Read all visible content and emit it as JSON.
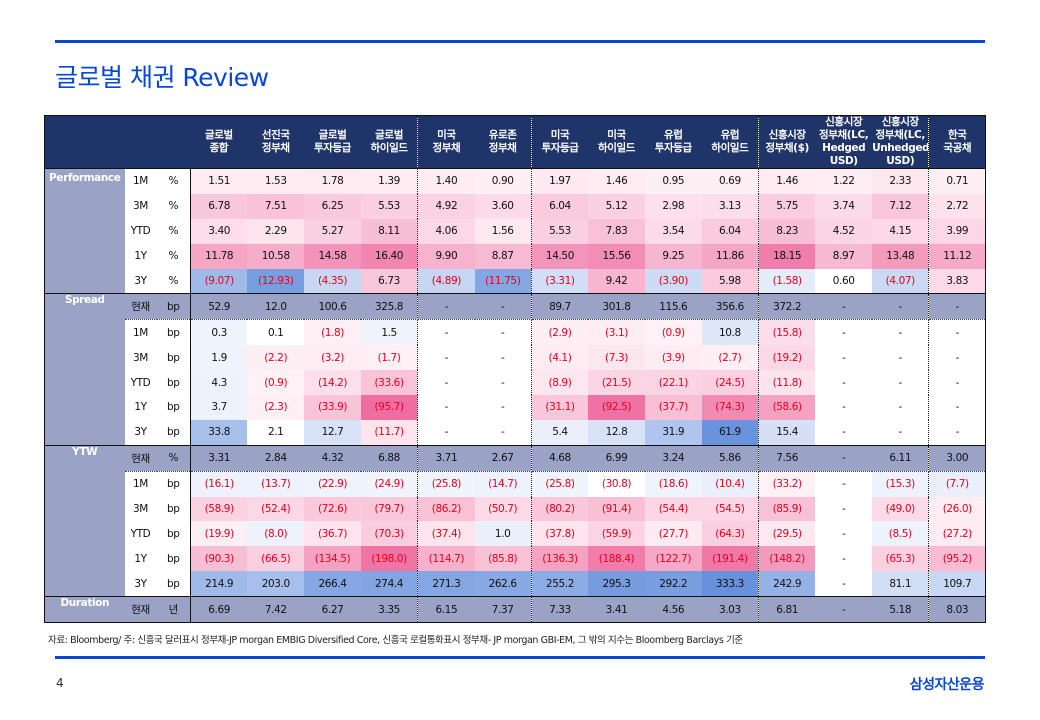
{
  "header": {
    "title": "글로벌 채권 Review"
  },
  "columns": [
    "글로벌\n종합",
    "선진국\n정부채",
    "글로벌\n투자등급",
    "글로벌\n하이일드",
    "미국\n정부채",
    "유로존\n정부채",
    "미국\n투자등급",
    "미국\n하이일드",
    "유럽\n투자등급",
    "유럽\n하이일드",
    "신흥시장\n정부채($)",
    "신흥시장\n정부채(LC,\nHedged\nUSD)",
    "신흥시장\n정부채(LC,\nUnhedged\nUSD)",
    "한국\n국공채"
  ],
  "colors": {
    "header_bg": "#1f3468",
    "group_bg": "#9aa3c6",
    "accent": "#0a47d6",
    "negative_text": "#e8001c",
    "pink_max": "#ec5f97",
    "blue_max": "#5b88d9"
  },
  "sections": [
    {
      "name": "Performance",
      "rows": [
        {
          "period": "1M",
          "unit": "%",
          "values": [
            "1.51",
            "1.53",
            "1.78",
            "1.39",
            "1.40",
            "0.90",
            "1.97",
            "1.46",
            "0.95",
            "0.69",
            "1.46",
            "1.22",
            "2.33",
            "0.71"
          ],
          "shade": [
            0.05,
            0.05,
            0.06,
            0.05,
            0.05,
            0.03,
            0.07,
            0.05,
            0.03,
            0.03,
            0.05,
            0.04,
            0.08,
            0.03
          ]
        },
        {
          "period": "3M",
          "unit": "%",
          "values": [
            "6.78",
            "7.51",
            "6.25",
            "5.53",
            "4.92",
            "3.60",
            "6.04",
            "5.12",
            "2.98",
            "3.13",
            "5.75",
            "3.74",
            "7.12",
            "2.72"
          ],
          "shade": [
            0.3,
            0.33,
            0.28,
            0.24,
            0.22,
            0.16,
            0.27,
            0.23,
            0.13,
            0.14,
            0.25,
            0.16,
            0.31,
            0.12
          ]
        },
        {
          "period": "YTD",
          "unit": "%",
          "values": [
            "3.40",
            "2.29",
            "5.27",
            "8.11",
            "4.06",
            "1.56",
            "5.53",
            "7.83",
            "3.54",
            "6.04",
            "8.23",
            "4.52",
            "4.15",
            "3.99"
          ],
          "shade": [
            0.15,
            0.1,
            0.23,
            0.36,
            0.18,
            0.07,
            0.24,
            0.34,
            0.16,
            0.27,
            0.36,
            0.2,
            0.18,
            0.18
          ]
        },
        {
          "period": "1Y",
          "unit": "%",
          "values": [
            "11.78",
            "10.58",
            "14.58",
            "16.40",
            "9.90",
            "8.87",
            "14.50",
            "15.56",
            "9.25",
            "11.86",
            "18.15",
            "8.97",
            "13.48",
            "11.12"
          ],
          "shade": [
            0.52,
            0.47,
            0.65,
            0.73,
            0.44,
            0.39,
            0.64,
            0.69,
            0.41,
            0.52,
            0.8,
            0.4,
            0.6,
            0.49
          ]
        },
        {
          "period": "3Y",
          "unit": "%",
          "values": [
            "(9.07)",
            "(12.93)",
            "(4.35)",
            "6.73",
            "(4.89)",
            "(11.75)",
            "(3.31)",
            "9.42",
            "(3.90)",
            "5.98",
            "(1.58)",
            "0.60",
            "(4.07)",
            "3.83"
          ],
          "shade": [
            -0.55,
            -0.8,
            -0.28,
            0.3,
            -0.3,
            -0.73,
            -0.22,
            0.42,
            -0.25,
            0.27,
            -0.1,
            0,
            -0.26,
            0.17
          ]
        }
      ]
    },
    {
      "name": "Spread",
      "current": {
        "period": "현재",
        "unit": "bp",
        "values": [
          "52.9",
          "12.0",
          "100.6",
          "325.8",
          "-",
          "-",
          "89.7",
          "301.8",
          "115.6",
          "356.6",
          "372.2",
          "-",
          "-",
          "-"
        ]
      },
      "rows": [
        {
          "period": "1M",
          "unit": "bp",
          "values": [
            "0.3",
            "0.1",
            "(1.8)",
            "1.5",
            "-",
            "-",
            "(2.9)",
            "(3.1)",
            "(0.9)",
            "10.8",
            "(15.8)",
            "-",
            "-",
            "-"
          ],
          "shade": [
            -0.02,
            0,
            0.02,
            -0.02,
            0,
            0,
            0.03,
            0.04,
            0.01,
            -0.14,
            0.14,
            0,
            0,
            0
          ]
        },
        {
          "period": "3M",
          "unit": "bp",
          "values": [
            "1.9",
            "(2.2)",
            "(3.2)",
            "(1.7)",
            "-",
            "-",
            "(4.1)",
            "(7.3)",
            "(3.9)",
            "(2.7)",
            "(19.2)",
            "-",
            "-",
            "-"
          ],
          "shade": [
            -0.03,
            0.03,
            0.04,
            0.02,
            0,
            0,
            0.05,
            0.08,
            0.05,
            0.03,
            0.18,
            0,
            0,
            0
          ]
        },
        {
          "period": "YTD",
          "unit": "bp",
          "values": [
            "4.3",
            "(0.9)",
            "(14.2)",
            "(33.6)",
            "-",
            "-",
            "(8.9)",
            "(21.5)",
            "(22.1)",
            "(24.5)",
            "(11.8)",
            "-",
            "-",
            "-"
          ],
          "shade": [
            -0.04,
            0.01,
            0.13,
            0.32,
            0,
            0,
            0.09,
            0.2,
            0.21,
            0.23,
            0.11,
            0,
            0,
            0
          ]
        },
        {
          "period": "1Y",
          "unit": "bp",
          "values": [
            "3.7",
            "(2.3)",
            "(33.9)",
            "(95.7)",
            "-",
            "-",
            "(31.1)",
            "(92.5)",
            "(37.7)",
            "(74.3)",
            "(58.6)",
            "-",
            "-",
            "-"
          ],
          "shade": [
            -0.04,
            0.02,
            0.32,
            0.9,
            0,
            0,
            0.3,
            0.87,
            0.35,
            0.7,
            0.55,
            0,
            0,
            0
          ]
        },
        {
          "period": "3Y",
          "unit": "bp",
          "values": [
            "33.8",
            "2.1",
            "12.7",
            "(11.7)",
            "-",
            "-",
            "5.4",
            "12.8",
            "31.9",
            "61.9",
            "15.4",
            "-",
            "-",
            "-"
          ],
          "shade": [
            -0.5,
            0,
            -0.18,
            0.1,
            0,
            0,
            -0.06,
            -0.18,
            -0.45,
            -0.9,
            -0.2,
            0,
            0,
            0
          ]
        }
      ]
    },
    {
      "name": "YTW",
      "current": {
        "period": "현재",
        "unit": "%",
        "values": [
          "3.31",
          "2.84",
          "4.32",
          "6.88",
          "3.71",
          "2.67",
          "4.68",
          "6.99",
          "3.24",
          "5.86",
          "7.56",
          "-",
          "6.11",
          "3.00"
        ]
      },
      "rows": [
        {
          "period": "1M",
          "unit": "bp",
          "values": [
            "(16.1)",
            "(13.7)",
            "(22.9)",
            "(24.9)",
            "(25.8)",
            "(14.7)",
            "(25.8)",
            "(30.8)",
            "(18.6)",
            "(10.4)",
            "(33.2)",
            "-",
            "(15.3)",
            "(7.7)"
          ],
          "shade": [
            -0.04,
            -0.04,
            -0.03,
            -0.02,
            -0.02,
            -0.04,
            -0.02,
            0.0,
            -0.03,
            -0.06,
            0.01,
            0,
            -0.04,
            -0.06
          ]
        },
        {
          "period": "3M",
          "unit": "bp",
          "values": [
            "(58.9)",
            "(52.4)",
            "(72.6)",
            "(79.7)",
            "(86.2)",
            "(50.7)",
            "(80.2)",
            "(91.4)",
            "(54.4)",
            "(54.5)",
            "(85.9)",
            "-",
            "(49.0)",
            "(26.0)"
          ],
          "shade": [
            0.22,
            0.18,
            0.28,
            0.3,
            0.34,
            0.17,
            0.3,
            0.35,
            0.19,
            0.19,
            0.34,
            0,
            0.16,
            0.04
          ]
        },
        {
          "period": "YTD",
          "unit": "bp",
          "values": [
            "(19.9)",
            "(8.0)",
            "(36.7)",
            "(70.3)",
            "(37.4)",
            "1.0",
            "(37.8)",
            "(59.9)",
            "(27.7)",
            "(64.3)",
            "(29.5)",
            "-",
            "(8.5)",
            "(27.2)"
          ],
          "shade": [
            0.03,
            -0.04,
            0.1,
            0.26,
            0.1,
            -0.06,
            0.1,
            0.21,
            0.06,
            0.24,
            0.07,
            0,
            -0.04,
            0.05
          ]
        },
        {
          "period": "1Y",
          "unit": "bp",
          "values": [
            "(90.3)",
            "(66.5)",
            "(134.5)",
            "(198.0)",
            "(114.7)",
            "(85.8)",
            "(136.3)",
            "(188.4)",
            "(122.7)",
            "(191.4)",
            "(148.2)",
            "-",
            "(65.3)",
            "(95.2)"
          ],
          "shade": [
            0.36,
            0.24,
            0.55,
            0.85,
            0.45,
            0.34,
            0.55,
            0.8,
            0.5,
            0.83,
            0.6,
            0,
            0.23,
            0.38
          ]
        },
        {
          "period": "3Y",
          "unit": "bp",
          "values": [
            "214.9",
            "203.0",
            "266.4",
            "274.4",
            "271.3",
            "262.6",
            "255.2",
            "295.3",
            "292.2",
            "333.3",
            "242.9",
            "-",
            "81.1",
            "109.7"
          ],
          "shade": [
            -0.55,
            -0.5,
            -0.72,
            -0.74,
            -0.73,
            -0.7,
            -0.68,
            -0.82,
            -0.8,
            -0.92,
            -0.62,
            0,
            -0.22,
            -0.28
          ]
        }
      ]
    },
    {
      "name": "Duration",
      "current": {
        "period": "현재",
        "unit": "년",
        "values": [
          "6.69",
          "7.42",
          "6.27",
          "3.35",
          "6.15",
          "7.37",
          "7.33",
          "3.41",
          "4.56",
          "3.03",
          "6.81",
          "-",
          "5.18",
          "8.03"
        ]
      },
      "rows": []
    }
  ],
  "footer": {
    "source": "자료: Bloomberg/ 주: 신흥국 달러표시 정부채-JP morgan EMBIG Diversified Core, 신흥국 로컬통화표시 정부채- JP morgan GBI-EM, 그 밖의 지수는 Bloomberg Barclays 기준",
    "page_number": "4",
    "brand": "삼성자산운용"
  }
}
